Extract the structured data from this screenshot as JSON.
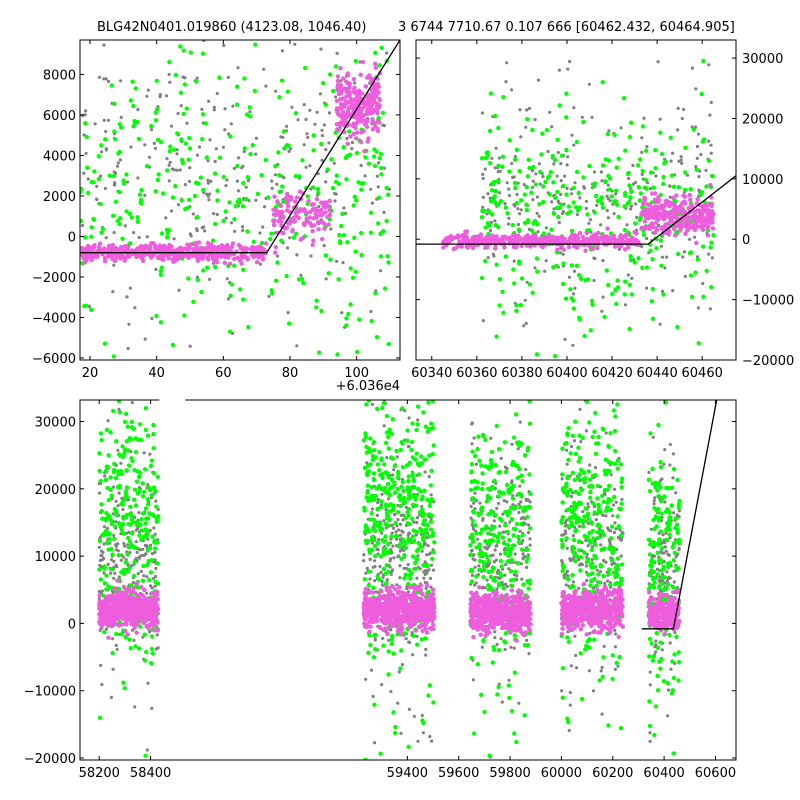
{
  "title": {
    "left": "BLG42N0401.019860 (4123.08, 1046.40)",
    "right": "3 6744 7710.67 0.107 666 [60462.432, 60464.905]"
  },
  "colors": {
    "series_a": "#ee5ddd",
    "series_b": "#00ff00",
    "series_c": "#808080",
    "model": "#000000"
  },
  "chart_data": [
    {
      "type": "scatter",
      "panel": "top-left",
      "xlim": [
        17,
        113
      ],
      "ylim": [
        -6100,
        9700
      ],
      "x_offset_label": "+6.036e4",
      "xticks": [
        20,
        40,
        60,
        80,
        100
      ],
      "yticks": [
        -6000,
        -4000,
        -2000,
        0,
        2000,
        4000,
        6000,
        8000
      ],
      "yaxis_side": "left",
      "clusters": [
        {
          "series": "series_a",
          "x": [
            17,
            73
          ],
          "base": -800,
          "spread": 350,
          "n": 420
        },
        {
          "series": "series_a",
          "x": [
            75,
            92
          ],
          "base": 1000,
          "spread": 900,
          "n": 120
        },
        {
          "series": "series_a",
          "x": [
            94,
            107
          ],
          "base": 6500,
          "spread": 1300,
          "n": 260
        },
        {
          "series": "series_b",
          "x": [
            17,
            110
          ],
          "base": 2000,
          "spread": 3500,
          "n": 360
        },
        {
          "series": "series_c",
          "x": [
            17,
            110
          ],
          "base": 3000,
          "spread": 3200,
          "n": 320
        }
      ],
      "model_line": [
        [
          17,
          -800
        ],
        [
          73,
          -800
        ],
        [
          113,
          9700
        ]
      ]
    },
    {
      "type": "scatter",
      "panel": "top-right",
      "xlim": [
        60333,
        60475
      ],
      "ylim": [
        -20000,
        33000
      ],
      "xticks": [
        60340,
        60360,
        60380,
        60400,
        60420,
        60440,
        60460
      ],
      "yticks": [
        -20000,
        -10000,
        0,
        10000,
        20000,
        30000
      ],
      "yaxis_side": "right",
      "clusters": [
        {
          "series": "series_a",
          "x": [
            60345,
            60432
          ],
          "base": -300,
          "spread": 900,
          "n": 420
        },
        {
          "series": "series_a",
          "x": [
            60433,
            60465
          ],
          "base": 4000,
          "spread": 2500,
          "n": 260
        },
        {
          "series": "series_b",
          "x": [
            60362,
            60465
          ],
          "base": 4000,
          "spread": 8000,
          "n": 360
        },
        {
          "series": "series_c",
          "x": [
            60362,
            60465
          ],
          "base": 6000,
          "spread": 7500,
          "n": 320
        }
      ],
      "model_line": [
        [
          60333,
          -800
        ],
        [
          60436,
          -800
        ],
        [
          60475,
          10500
        ]
      ]
    },
    {
      "type": "scatter",
      "panel": "bottom",
      "xlim": [
        58125,
        60680
      ],
      "ylim": [
        -20300,
        33200
      ],
      "xticks": [
        58200,
        58400,
        59400,
        59600,
        59800,
        60000,
        60200,
        60400,
        60600
      ],
      "yticks": [
        -20000,
        -10000,
        0,
        10000,
        20000,
        30000
      ],
      "yaxis_side": "left",
      "axis_break_x": [
        58434,
        58535
      ],
      "clusters": [
        {
          "series": "series_a",
          "x": [
            58200,
            58430
          ],
          "base": 2000,
          "spread": 2200,
          "n": 520
        },
        {
          "series": "series_b",
          "x": [
            58200,
            58430
          ],
          "base": 15000,
          "spread": 9000,
          "n": 280
        },
        {
          "series": "series_c",
          "x": [
            58200,
            58430
          ],
          "base": 9000,
          "spread": 7000,
          "n": 260
        },
        {
          "series": "series_a",
          "x": [
            59230,
            59505
          ],
          "base": 2000,
          "spread": 2200,
          "n": 620
        },
        {
          "series": "series_b",
          "x": [
            59230,
            59505
          ],
          "base": 16000,
          "spread": 9500,
          "n": 400
        },
        {
          "series": "series_c",
          "x": [
            59230,
            59505
          ],
          "base": 9000,
          "spread": 7500,
          "n": 320
        },
        {
          "series": "series_a",
          "x": [
            59645,
            59880
          ],
          "base": 1500,
          "spread": 2300,
          "n": 520
        },
        {
          "series": "series_b",
          "x": [
            59645,
            59880
          ],
          "base": 12000,
          "spread": 9000,
          "n": 280
        },
        {
          "series": "series_c",
          "x": [
            59645,
            59880
          ],
          "base": 9000,
          "spread": 7500,
          "n": 260
        },
        {
          "series": "series_a",
          "x": [
            60000,
            60240
          ],
          "base": 2000,
          "spread": 2300,
          "n": 520
        },
        {
          "series": "series_b",
          "x": [
            60000,
            60240
          ],
          "base": 14000,
          "spread": 9500,
          "n": 300
        },
        {
          "series": "series_c",
          "x": [
            60000,
            60240
          ],
          "base": 9000,
          "spread": 7500,
          "n": 260
        },
        {
          "series": "series_a",
          "x": [
            60340,
            60460
          ],
          "base": 1500,
          "spread": 2200,
          "n": 240
        },
        {
          "series": "series_b",
          "x": [
            60340,
            60460
          ],
          "base": 8000,
          "spread": 9000,
          "n": 180
        },
        {
          "series": "series_c",
          "x": [
            60340,
            60460
          ],
          "base": 8000,
          "spread": 7000,
          "n": 160
        }
      ],
      "model_line": [
        [
          60313,
          -800
        ],
        [
          60436,
          -800
        ],
        [
          60605,
          33200
        ]
      ]
    }
  ]
}
